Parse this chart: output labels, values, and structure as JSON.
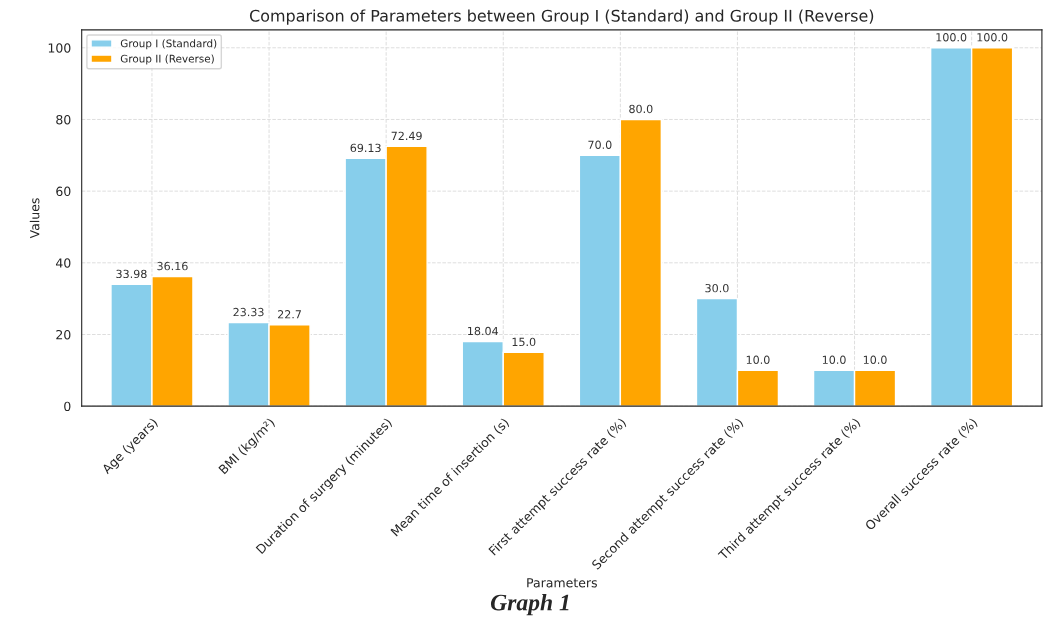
{
  "chart_data": {
    "type": "bar",
    "title": "Comparison of Parameters between Group I (Standard) and Group II (Reverse)",
    "xlabel": "Parameters",
    "ylabel": "Values",
    "categories": [
      "Age (years)",
      "BMI (kg/m²)",
      "Duration of surgery (minutes)",
      "Mean time of insertion (s)",
      "First attempt success rate (%)",
      "Second attempt success rate (%)",
      "Third attempt success rate (%)",
      "Overall success rate (%)"
    ],
    "series": [
      {
        "name": "Group I (Standard)",
        "color": "#87ceeb",
        "values": [
          33.98,
          23.33,
          69.13,
          18.04,
          70.0,
          30.0,
          10.0,
          100.0
        ],
        "value_labels": [
          "33.98",
          "23.33",
          "69.13",
          "18.04",
          "70.0",
          "30.0",
          "10.0",
          "100.0"
        ]
      },
      {
        "name": "Group II (Reverse)",
        "color": "#ffa500",
        "values": [
          36.16,
          22.7,
          72.49,
          15.0,
          80.0,
          10.0,
          10.0,
          100.0
        ],
        "value_labels": [
          "36.16",
          "22.7",
          "72.49",
          "15.0",
          "80.0",
          "10.0",
          "10.0",
          "100.0"
        ]
      }
    ],
    "ylim": [
      0,
      105
    ],
    "yticks": [
      0,
      20,
      40,
      60,
      80,
      100
    ],
    "grid": true,
    "legend": "top left",
    "annotations": [
      "Graph 1"
    ]
  }
}
